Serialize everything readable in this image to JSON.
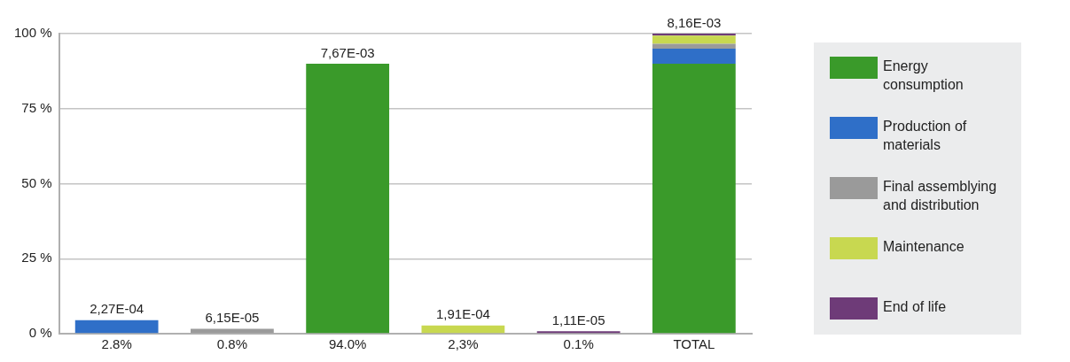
{
  "chart_data": {
    "type": "bar",
    "stacked": true,
    "categories": [
      "2.8%",
      "0.8%",
      "94.0%",
      "2,3%",
      "0.1%",
      "TOTAL"
    ],
    "series": [
      {
        "name": "Energy consumption",
        "color": "#3a9a2a",
        "values": [
          null,
          null,
          90,
          null,
          null,
          90
        ]
      },
      {
        "name": "Production of materials",
        "color": "#2f6fc8",
        "values": [
          4.5,
          null,
          null,
          null,
          null,
          5
        ]
      },
      {
        "name": "Final assemblying and distribution",
        "color": "#9a9a9a",
        "values": [
          null,
          1.6,
          null,
          null,
          null,
          1.6
        ]
      },
      {
        "name": "Maintenance",
        "color": "#c8d850",
        "values": [
          null,
          null,
          null,
          2.7,
          null,
          2.7
        ]
      },
      {
        "name": "End of life",
        "color": "#6e3b78",
        "values": [
          null,
          null,
          null,
          null,
          0.8,
          0.7
        ]
      }
    ],
    "annotations": [
      {
        "text": "2,27E-04",
        "x": "2.8%",
        "y": 4.5
      },
      {
        "text": "6,15E-05",
        "x": "0.8%",
        "y": 1.6
      },
      {
        "text": "7,67E-03",
        "x": "94.0%",
        "y": 90
      },
      {
        "text": "1,91E-04",
        "x": "2,3%",
        "y": 2.7
      },
      {
        "text": "1,11E-05",
        "x": "0.1%",
        "y": 0.8
      },
      {
        "text": "8,16E-03",
        "x": "TOTAL",
        "y": 100
      }
    ],
    "ylim": [
      0,
      100
    ],
    "yticks": [
      {
        "value": 0,
        "label": "0 %"
      },
      {
        "value": 25,
        "label": "25 %"
      },
      {
        "value": 50,
        "label": "50 %"
      },
      {
        "value": 75,
        "label": "75 %"
      },
      {
        "value": 100,
        "label": "100 %"
      }
    ],
    "grid": "y",
    "legend": "right"
  }
}
